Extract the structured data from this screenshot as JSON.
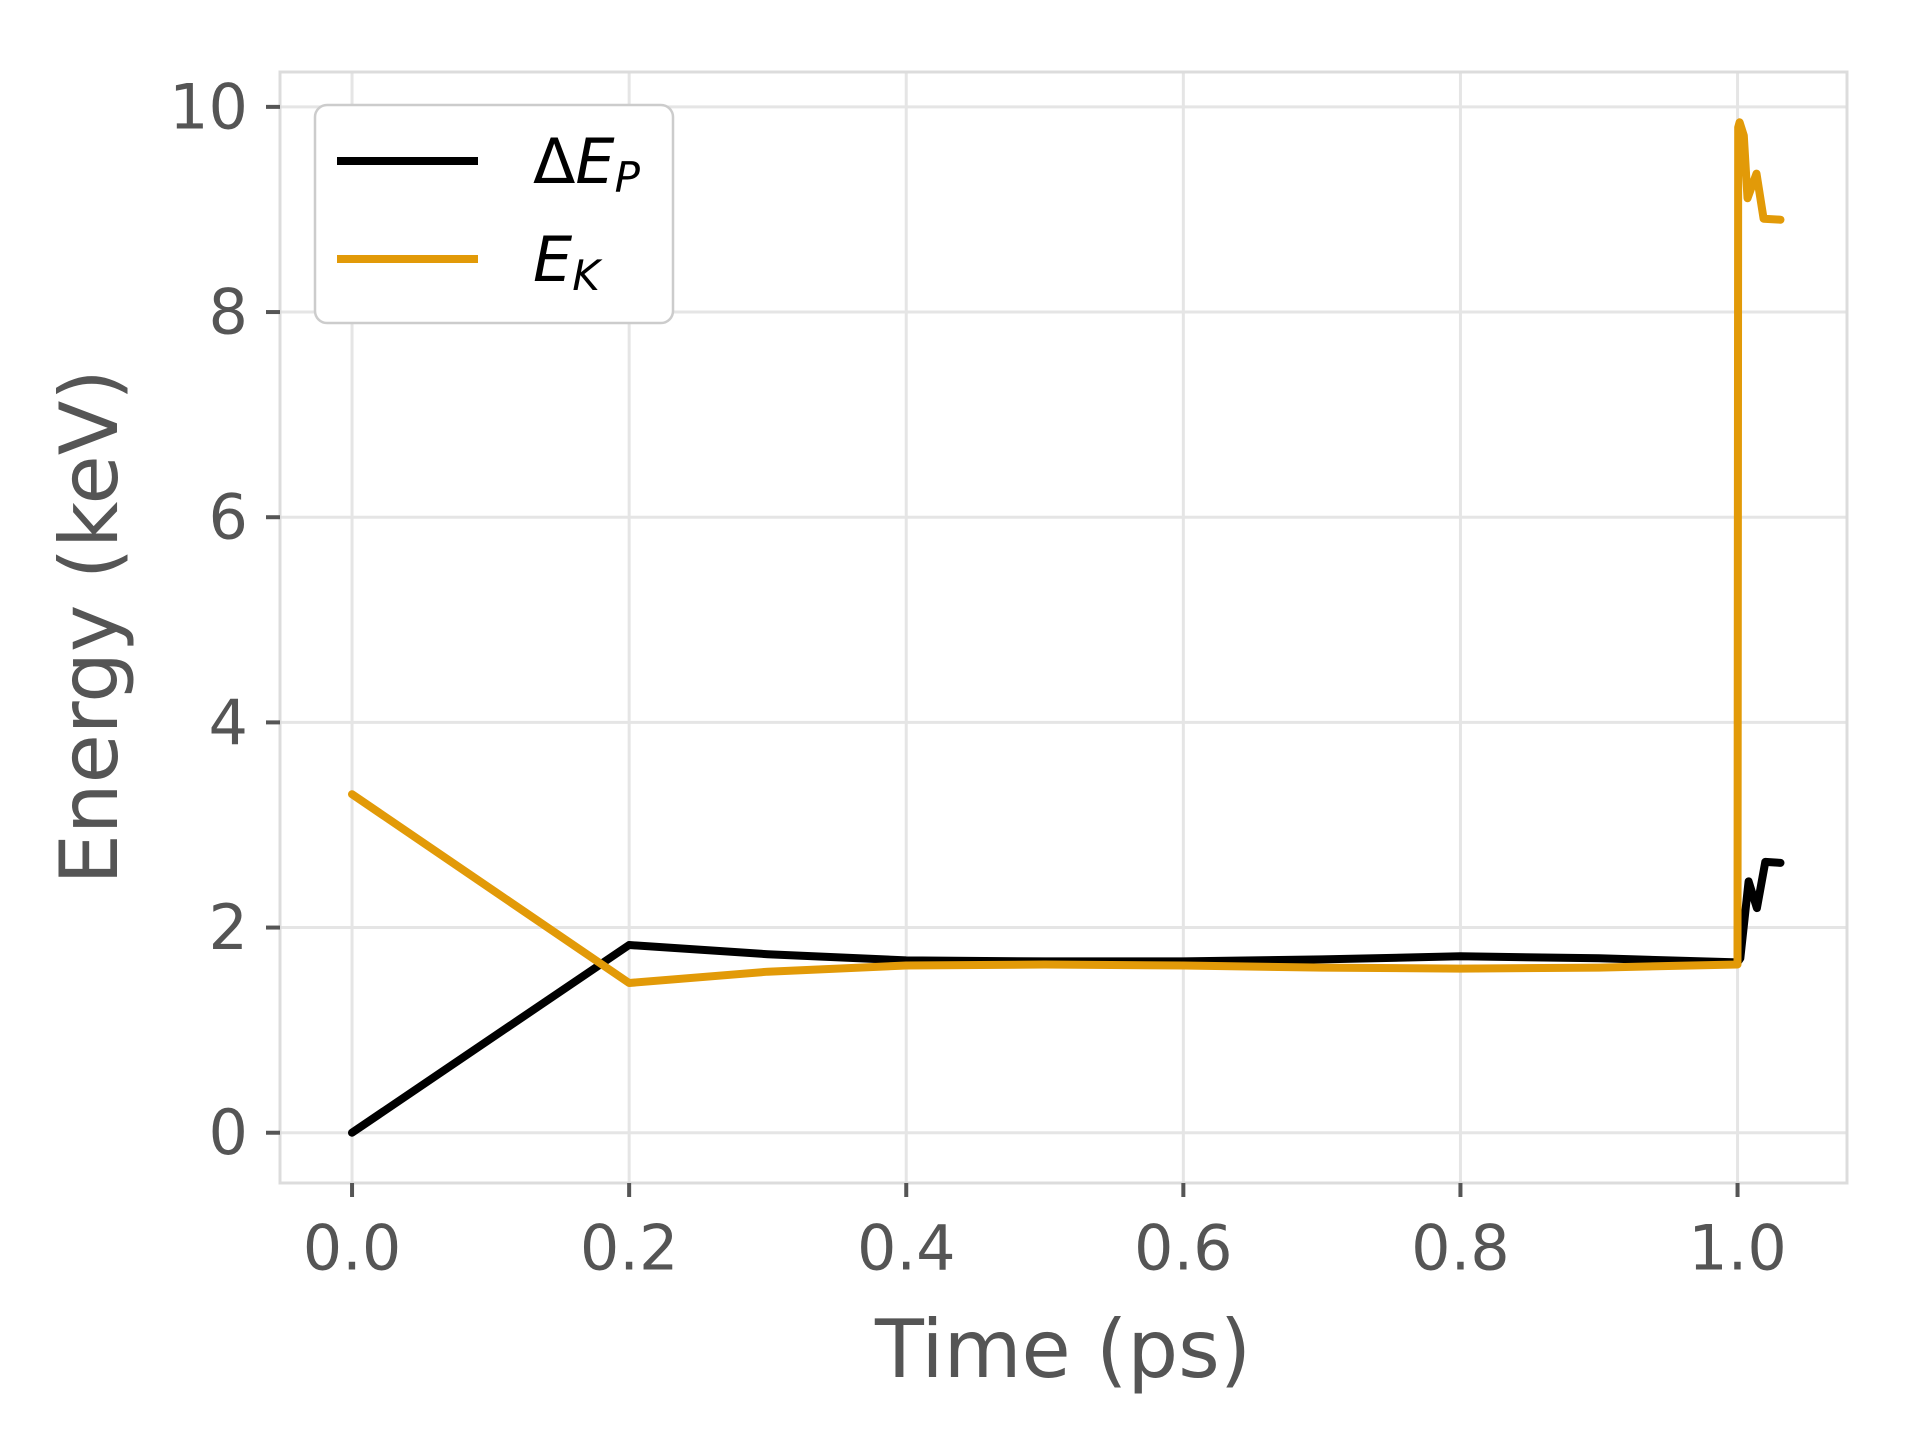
{
  "chart_data": {
    "type": "line",
    "title": "",
    "xlabel": "Time (ps)",
    "ylabel": "Energy (keV)",
    "xlim": [
      -0.052,
      1.079
    ],
    "ylim": [
      -0.49,
      10.34
    ],
    "grid": true,
    "legend_position": "upper-left",
    "x_ticks": {
      "values": [
        0.0,
        0.2,
        0.4,
        0.6,
        0.8,
        1.0
      ],
      "labels": [
        "0.0",
        "0.2",
        "0.4",
        "0.6",
        "0.8",
        "1.0"
      ]
    },
    "y_ticks": {
      "values": [
        0,
        2,
        4,
        6,
        8,
        10
      ],
      "labels": [
        "0",
        "2",
        "4",
        "6",
        "8",
        "10"
      ]
    },
    "series": [
      {
        "name": "delta-E-P",
        "label": "ΔE_P",
        "label_main_upright": "Δ",
        "label_main_italic": "E",
        "label_sub": "P",
        "color": "#000000",
        "points": [
          [
            0.0,
            0.0
          ],
          [
            0.2,
            1.83
          ],
          [
            0.3,
            1.74
          ],
          [
            0.4,
            1.68
          ],
          [
            0.5,
            1.67
          ],
          [
            0.6,
            1.67
          ],
          [
            0.7,
            1.69
          ],
          [
            0.8,
            1.72
          ],
          [
            0.9,
            1.7
          ],
          [
            0.95,
            1.68
          ],
          [
            1.0,
            1.66
          ],
          [
            1.002,
            1.7
          ],
          [
            1.008,
            2.45
          ],
          [
            1.014,
            2.19
          ],
          [
            1.02,
            2.64
          ],
          [
            1.031,
            2.63
          ]
        ]
      },
      {
        "name": "E-K",
        "label": "E_K",
        "label_main_upright": "",
        "label_main_italic": "E",
        "label_sub": "K",
        "color": "#E29A08",
        "points": [
          [
            0.0,
            3.3
          ],
          [
            0.2,
            1.46
          ],
          [
            0.3,
            1.57
          ],
          [
            0.4,
            1.63
          ],
          [
            0.5,
            1.64
          ],
          [
            0.6,
            1.63
          ],
          [
            0.7,
            1.61
          ],
          [
            0.8,
            1.6
          ],
          [
            0.9,
            1.61
          ],
          [
            1.0,
            1.64
          ],
          [
            1.0005,
            9.8
          ],
          [
            1.0015,
            9.85
          ],
          [
            1.0045,
            9.72
          ],
          [
            1.0072,
            9.11
          ],
          [
            1.0137,
            9.35
          ],
          [
            1.0188,
            8.91
          ],
          [
            1.031,
            8.9
          ]
        ]
      }
    ],
    "colors": {
      "background": "#FFFFFF",
      "grid": "#E5E5E5",
      "spine": "#DCDCDC",
      "tick": "#555555",
      "text": "#555555",
      "legend_border": "#CCCCCC",
      "legend_background": "#FFFFFF"
    }
  }
}
